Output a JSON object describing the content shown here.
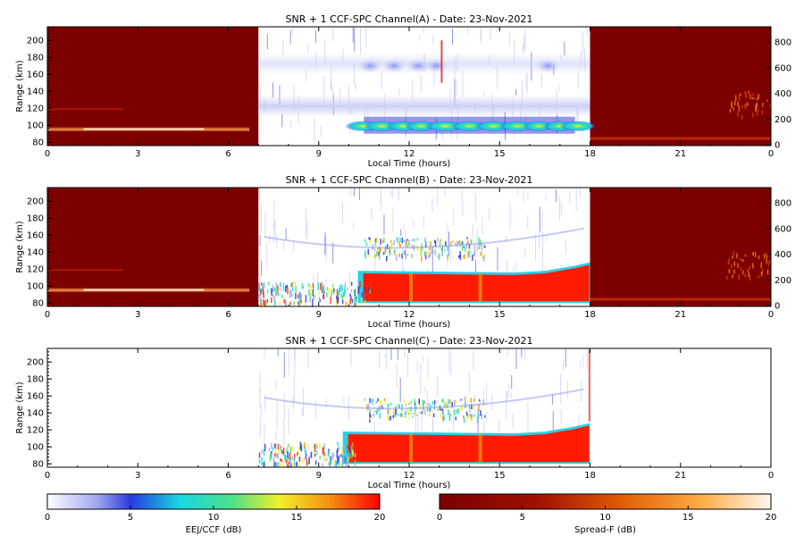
{
  "panels": [
    {
      "title": "SNR + 1 CCF-SPC Channel(A) - Date: 23-Nov-2021",
      "xlabel": "Local Time (hours)",
      "ylabel": "Range (km)",
      "xticks": [
        "0",
        "3",
        "6",
        "9",
        "12",
        "15",
        "18",
        "21",
        "0"
      ],
      "yticks": [
        "80",
        "100",
        "120",
        "140",
        "160",
        "180",
        "200"
      ],
      "right_ticks": [
        "0",
        "200",
        "400",
        "600",
        "800"
      ],
      "night_background": true
    },
    {
      "title": "SNR + 1 CCF-SPC Channel(B) - Date: 23-Nov-2021",
      "xlabel": "Local Time (hours)",
      "ylabel": "Range (km)",
      "xticks": [
        "0",
        "3",
        "6",
        "9",
        "12",
        "15",
        "18",
        "21",
        "0"
      ],
      "yticks": [
        "80",
        "100",
        "120",
        "140",
        "160",
        "180",
        "200"
      ],
      "right_ticks": [
        "0",
        "200",
        "400",
        "600",
        "800"
      ],
      "night_background": true
    },
    {
      "title": "SNR + 1 CCF-SPC Channel(C) - Date: 23-Nov-2021",
      "xlabel": "Local Time (hours)",
      "ylabel": "Range (km)",
      "xticks": [
        "0",
        "3",
        "6",
        "9",
        "12",
        "15",
        "18",
        "21",
        "0"
      ],
      "yticks": [
        "80",
        "100",
        "120",
        "140",
        "160",
        "180",
        "200"
      ],
      "right_ticks": [],
      "night_background": false
    }
  ],
  "colorbars": [
    {
      "label": "EEJ/CCF (dB)",
      "ticks": [
        "0",
        "5",
        "10",
        "15",
        "20"
      ],
      "scheme": "jet"
    },
    {
      "label": "Spread-F (dB)",
      "ticks": [
        "0",
        "5",
        "10",
        "15",
        "20"
      ],
      "scheme": "heat"
    }
  ],
  "chart_data": [
    {
      "type": "heatmap",
      "title": "SNR + 1 CCF-SPC Channel(A) - Date: 23-Nov-2021",
      "xlabel": "Local Time (hours)",
      "ylabel": "Range (km)",
      "xlim": [
        0,
        24
      ],
      "ylim": [
        76,
        216
      ],
      "right_axis": {
        "ticks": [
          0,
          200,
          400,
          600,
          800
        ]
      },
      "colorbar": "EEJ/CCF (dB)",
      "colorbar_range_db": [
        0,
        20
      ],
      "daytime_window_hours": [
        7,
        18
      ],
      "night_window_colorbar": "Spread-F (dB)",
      "features": [
        {
          "name": "E-region echo",
          "time_hours": [
            10.5,
            17.5
          ],
          "range_km": [
            95,
            102
          ],
          "peak_db": 12
        },
        {
          "name": "weak layer",
          "time_hours": [
            10.5,
            17.0
          ],
          "range_km": [
            165,
            175
          ],
          "peak_db": 4
        }
      ],
      "grid": false
    },
    {
      "type": "heatmap",
      "title": "SNR + 1 CCF-SPC Channel(B) - Date: 23-Nov-2021",
      "xlabel": "Local Time (hours)",
      "ylabel": "Range (km)",
      "xlim": [
        0,
        24
      ],
      "ylim": [
        76,
        216
      ],
      "right_axis": {
        "ticks": [
          0,
          200,
          400,
          600,
          800
        ]
      },
      "colorbar": "EEJ/CCF (dB)",
      "colorbar_range_db": [
        0,
        20
      ],
      "daytime_window_hours": [
        7,
        18
      ],
      "night_window_colorbar": "Spread-F (dB)",
      "features": [
        {
          "name": "saturated E-region echo",
          "time_hours": [
            10.3,
            18
          ],
          "range_km": [
            80,
            118
          ],
          "peak_db": 20
        },
        {
          "name": "150-km echoes",
          "time_hours": [
            10.5,
            14.5
          ],
          "range_km": [
            135,
            158
          ],
          "peak_db": 10
        }
      ],
      "grid": false
    },
    {
      "type": "heatmap",
      "title": "SNR + 1 CCF-SPC Channel(C) - Date: 23-Nov-2021",
      "xlabel": "Local Time (hours)",
      "ylabel": "Range (km)",
      "xlim": [
        0,
        24
      ],
      "ylim": [
        76,
        216
      ],
      "colorbar": "EEJ/CCF (dB)",
      "colorbar_range_db": [
        0,
        20
      ],
      "daytime_window_hours": [
        7,
        18
      ],
      "features": [
        {
          "name": "saturated E-region echo",
          "time_hours": [
            9.8,
            18
          ],
          "range_km": [
            80,
            118
          ],
          "peak_db": 20
        },
        {
          "name": "150-km echoes",
          "time_hours": [
            10.5,
            14.5
          ],
          "range_km": [
            135,
            158
          ],
          "peak_db": 10
        }
      ],
      "grid": false
    }
  ]
}
